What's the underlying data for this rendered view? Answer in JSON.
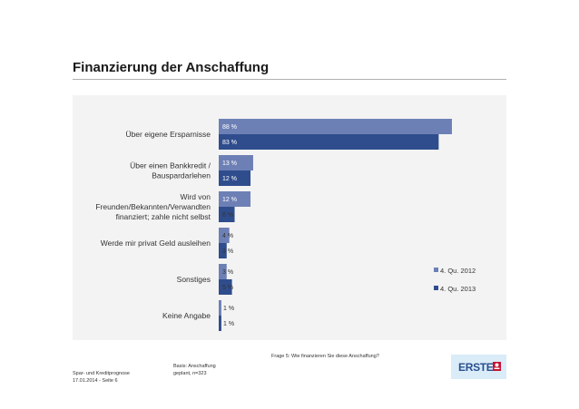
{
  "page": {
    "title": "Finanzierung der Anschaffung",
    "question": "Frage 5: Wie finanzieren Sie diese Anschaffung?",
    "basis": [
      "Basis: Anschaffung",
      "geplant,  n=323"
    ],
    "footer": [
      "Spar- und Kreditprognose",
      "17.01.2014 - Seite 6"
    ],
    "logo_text": "ERSTE"
  },
  "colors": {
    "series_2012": "#6d80b6",
    "series_2013": "#2f4d8d",
    "label_2012": "#ffffff",
    "label_2013": "#ffffff",
    "panel": "#f3f3f3"
  },
  "chart_data": {
    "type": "bar",
    "orientation": "horizontal",
    "categories": [
      [
        "Über eigene Ersparnisse"
      ],
      [
        "Über einen Bankkredit /",
        "Bauspardarlehen"
      ],
      [
        "Wird von",
        "Freunden/Bekannten/Verwandten",
        "finanziert; zahle nicht selbst"
      ],
      [
        "Werde mir privat Geld ausleihen"
      ],
      [
        "Sonstiges"
      ],
      [
        "Keine Angabe"
      ]
    ],
    "series": [
      {
        "name": "4. Qu. 2012",
        "values": [
          88,
          13,
          12,
          4,
          3,
          1
        ]
      },
      {
        "name": "4. Qu. 2013",
        "values": [
          83,
          12,
          6,
          3,
          5,
          1
        ]
      }
    ],
    "value_labels": [
      [
        "88 %",
        "13 %",
        "12 %",
        "4 %",
        "3 %",
        "1 %"
      ],
      [
        "83 %",
        "12 %",
        "6 %",
        "3 %",
        "5 %",
        "1 %"
      ]
    ],
    "xlim": [
      0,
      100
    ],
    "legend": "right"
  }
}
